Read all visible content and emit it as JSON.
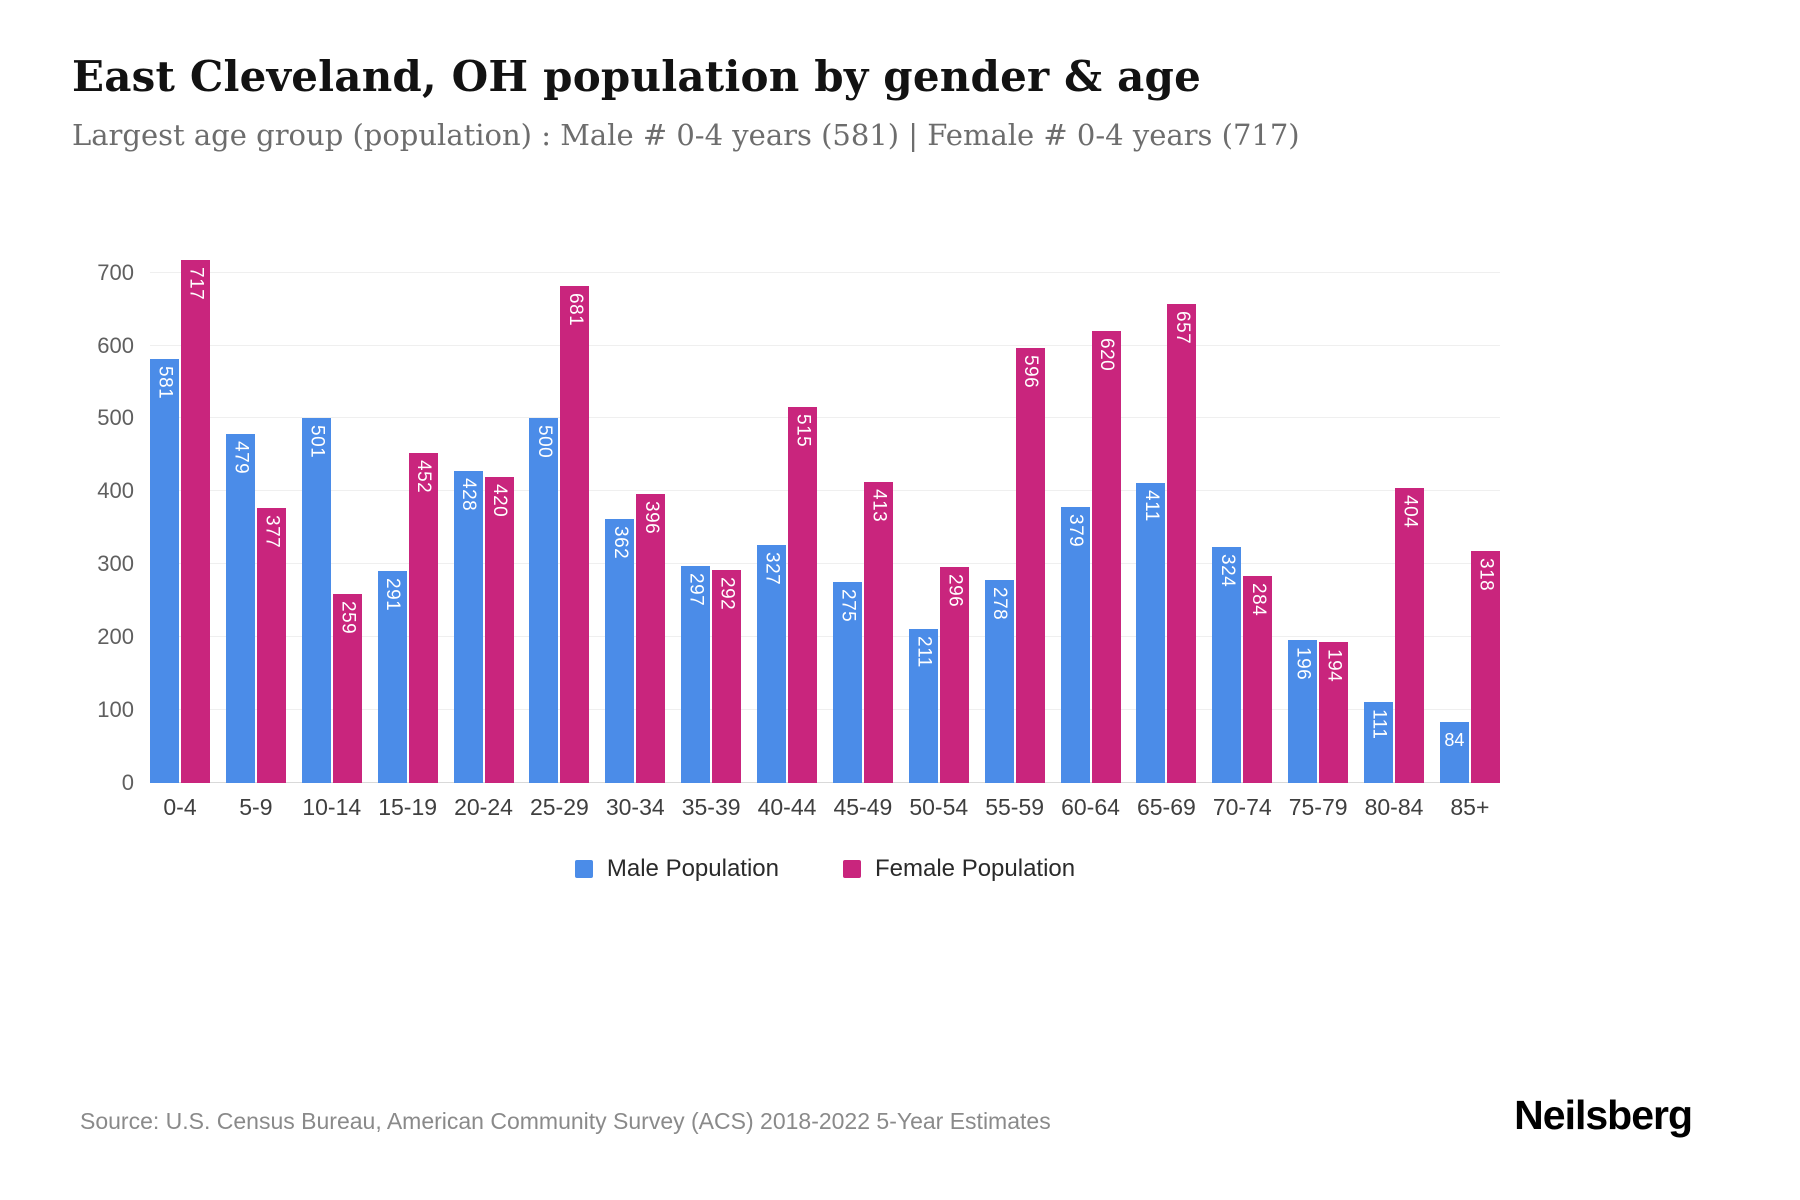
{
  "chart_data": {
    "type": "bar",
    "title": "East Cleveland, OH population by gender & age",
    "subtitle": "Largest age group (population) : Male # 0-4 years (581) | Female # 0-4 years (717)",
    "categories": [
      "0-4",
      "5-9",
      "10-14",
      "15-19",
      "20-24",
      "25-29",
      "30-34",
      "35-39",
      "40-44",
      "45-49",
      "50-54",
      "55-59",
      "60-64",
      "65-69",
      "70-74",
      "75-79",
      "80-84",
      "85+"
    ],
    "series": [
      {
        "name": "Male Population",
        "color": "#4b8ce8",
        "values": [
          581,
          479,
          501,
          291,
          428,
          500,
          362,
          297,
          327,
          275,
          211,
          278,
          379,
          411,
          324,
          196,
          111,
          84
        ]
      },
      {
        "name": "Female Population",
        "color": "#c9257d",
        "values": [
          717,
          377,
          259,
          452,
          420,
          681,
          396,
          292,
          515,
          413,
          296,
          596,
          620,
          657,
          284,
          194,
          404,
          318
        ]
      }
    ],
    "xlabel": "",
    "ylabel": "",
    "ylim": [
      0,
      720
    ],
    "yticks": [
      0,
      100,
      200,
      300,
      400,
      500,
      600,
      700
    ],
    "grid": true,
    "legend_position": "bottom"
  },
  "footer": {
    "source": "Source: U.S. Census Bureau, American Community Survey (ACS) 2018-2022 5-Year Estimates",
    "brand": "Neilsberg"
  }
}
